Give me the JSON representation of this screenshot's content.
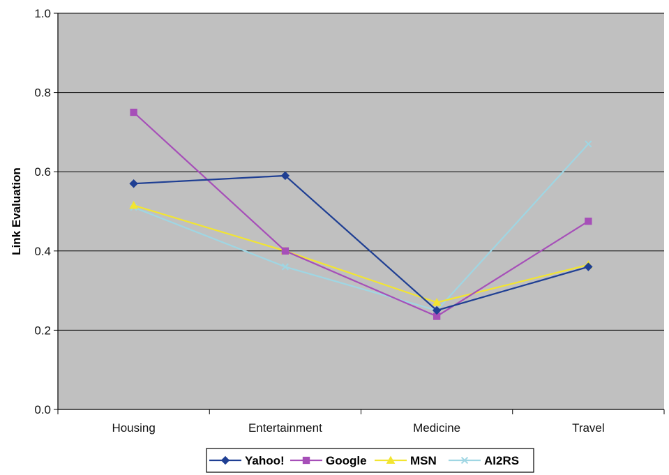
{
  "chart_data": {
    "type": "line",
    "categories": [
      "Housing",
      "Entertainment",
      "Medicine",
      "Travel"
    ],
    "ylabel": "Link Evaluation",
    "ylim": [
      0,
      1
    ],
    "yticks": [
      "0.0",
      "0.2",
      "0.4",
      "0.6",
      "0.8",
      "1.0"
    ],
    "grid": true,
    "legend_position": "bottom",
    "plot_background": "#c0c0c0",
    "series": [
      {
        "name": "Yahoo!",
        "values": [
          0.57,
          0.59,
          0.25,
          0.36
        ],
        "color": "#1f3f93",
        "marker": "diamond"
      },
      {
        "name": "Google",
        "values": [
          0.75,
          0.4,
          0.235,
          0.475
        ],
        "color": "#a64fb8",
        "marker": "square"
      },
      {
        "name": "MSN",
        "values": [
          0.515,
          0.4,
          0.27,
          0.365
        ],
        "color": "#f2e531",
        "marker": "triangle"
      },
      {
        "name": "AI2RS",
        "values": [
          0.51,
          0.36,
          0.25,
          0.67
        ],
        "color": "#9fd6e3",
        "marker": "x"
      }
    ]
  }
}
